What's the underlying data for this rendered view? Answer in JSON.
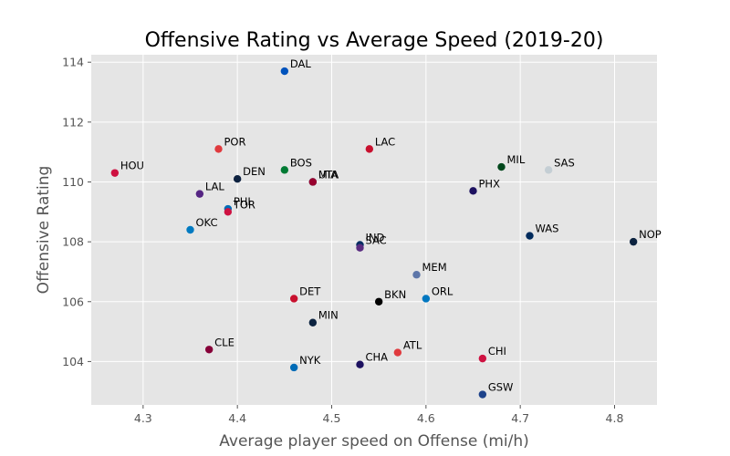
{
  "chart_data": {
    "type": "scatter",
    "title": "Offensive Rating vs Average Speed (2019-20)",
    "xlabel": "Average player speed on Offense (mi/h)",
    "ylabel": "Offensive Rating",
    "xlim": [
      4.245,
      4.845
    ],
    "ylim": [
      102.55,
      114.25
    ],
    "xticks": [
      "4.3",
      "4.4",
      "4.5",
      "4.6",
      "4.7",
      "4.8"
    ],
    "yticks": [
      "104",
      "106",
      "108",
      "110",
      "112",
      "114"
    ],
    "grid": true,
    "points": [
      {
        "label": "DAL",
        "x": 4.45,
        "y": 113.7,
        "color": "#0053BC"
      },
      {
        "label": "POR",
        "x": 4.38,
        "y": 111.1,
        "color": "#E03A3E"
      },
      {
        "label": "LAC",
        "x": 4.54,
        "y": 111.1,
        "color": "#C8102E"
      },
      {
        "label": "MIL",
        "x": 4.68,
        "y": 110.5,
        "color": "#00471B"
      },
      {
        "label": "SAS",
        "x": 4.73,
        "y": 110.4,
        "color": "#C4CED4"
      },
      {
        "label": "BOS",
        "x": 4.45,
        "y": 110.4,
        "color": "#007A33"
      },
      {
        "label": "HOU",
        "x": 4.27,
        "y": 110.3,
        "color": "#CE1141"
      },
      {
        "label": "DEN",
        "x": 4.4,
        "y": 110.1,
        "color": "#0E2240"
      },
      {
        "label": "UTA",
        "x": 4.48,
        "y": 110.0,
        "color": "#002B5C"
      },
      {
        "label": "MIA",
        "x": 4.48,
        "y": 110.0,
        "color": "#98002E"
      },
      {
        "label": "PHX",
        "x": 4.65,
        "y": 109.7,
        "color": "#1D1160"
      },
      {
        "label": "LAL",
        "x": 4.36,
        "y": 109.6,
        "color": "#552583"
      },
      {
        "label": "PHI",
        "x": 4.39,
        "y": 109.1,
        "color": "#006BB6"
      },
      {
        "label": "TOR",
        "x": 4.39,
        "y": 109.0,
        "color": "#CE1141"
      },
      {
        "label": "OKC",
        "x": 4.35,
        "y": 108.4,
        "color": "#007AC1"
      },
      {
        "label": "WAS",
        "x": 4.71,
        "y": 108.2,
        "color": "#002B5C"
      },
      {
        "label": "NOP",
        "x": 4.82,
        "y": 108.0,
        "color": "#0C2340"
      },
      {
        "label": "IND",
        "x": 4.53,
        "y": 107.9,
        "color": "#002D62"
      },
      {
        "label": "SAC",
        "x": 4.53,
        "y": 107.8,
        "color": "#5A2D81"
      },
      {
        "label": "MEM",
        "x": 4.59,
        "y": 106.9,
        "color": "#5D76A9"
      },
      {
        "label": "DET",
        "x": 4.46,
        "y": 106.1,
        "color": "#C8102E"
      },
      {
        "label": "ORL",
        "x": 4.6,
        "y": 106.1,
        "color": "#0077C0"
      },
      {
        "label": "BKN",
        "x": 4.55,
        "y": 106.0,
        "color": "#000000"
      },
      {
        "label": "MIN",
        "x": 4.48,
        "y": 105.3,
        "color": "#0C2340"
      },
      {
        "label": "CLE",
        "x": 4.37,
        "y": 104.4,
        "color": "#860038"
      },
      {
        "label": "ATL",
        "x": 4.57,
        "y": 104.3,
        "color": "#E03A3E"
      },
      {
        "label": "CHI",
        "x": 4.66,
        "y": 104.1,
        "color": "#CE1141"
      },
      {
        "label": "CHA",
        "x": 4.53,
        "y": 103.9,
        "color": "#1D1160"
      },
      {
        "label": "NYK",
        "x": 4.46,
        "y": 103.8,
        "color": "#006BB6"
      },
      {
        "label": "GSW",
        "x": 4.66,
        "y": 102.9,
        "color": "#1D428A"
      }
    ]
  },
  "colors": {
    "plot_background": "#E5E5E5",
    "grid": "#FFFFFF",
    "tick_text": "#555555"
  }
}
